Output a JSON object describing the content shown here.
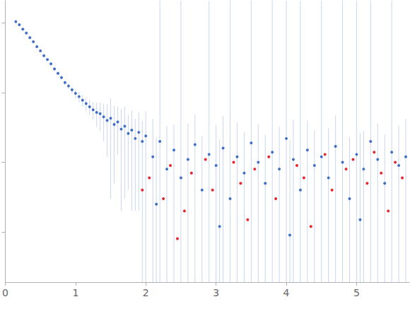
{
  "chart_data": {
    "type": "scatter",
    "log": "y",
    "grid": false,
    "tick_labels": "x",
    "xlim": [
      0,
      5.75
    ],
    "xticks": [
      0,
      1,
      2,
      3,
      4,
      5
    ],
    "ylim": [
      0.00019,
      2.1
    ],
    "yticks": [
      0.001,
      0.01,
      0.1,
      1
    ],
    "series": [
      {
        "color": "#3f6fc6",
        "marker": "circle",
        "x": [
          0.15,
          0.2,
          0.25,
          0.3,
          0.35,
          0.4,
          0.45,
          0.5,
          0.55,
          0.6,
          0.65,
          0.7,
          0.75,
          0.8,
          0.85,
          0.9,
          0.95,
          1.0,
          1.05,
          1.1,
          1.15,
          1.2,
          1.25,
          1.3,
          1.35,
          1.4,
          1.45,
          1.5,
          1.55,
          1.6,
          1.65,
          1.7,
          1.75,
          1.8,
          1.85,
          1.9,
          1.95,
          2.0,
          2.1,
          2.15,
          2.2,
          2.3,
          2.4,
          2.5,
          2.6,
          2.7,
          2.8,
          2.9,
          3.0,
          3.05,
          3.1,
          3.2,
          3.3,
          3.4,
          3.5,
          3.6,
          3.7,
          3.8,
          3.9,
          4.0,
          4.05,
          4.1,
          4.2,
          4.3,
          4.4,
          4.5,
          4.6,
          4.7,
          4.8,
          4.9,
          5.0,
          5.05,
          5.1,
          5.2,
          5.3,
          5.4,
          5.5,
          5.6,
          5.7
        ],
        "values": [
          1.05,
          0.95,
          0.82,
          0.72,
          0.62,
          0.54,
          0.46,
          0.4,
          0.34,
          0.3,
          0.26,
          0.22,
          0.19,
          0.165,
          0.14,
          0.125,
          0.11,
          0.098,
          0.088,
          0.078,
          0.07,
          0.063,
          0.057,
          0.052,
          0.05,
          0.045,
          0.04,
          0.043,
          0.035,
          0.038,
          0.03,
          0.033,
          0.026,
          0.029,
          0.022,
          0.027,
          0.02,
          0.024,
          0.012,
          0.0025,
          0.02,
          0.008,
          0.015,
          0.006,
          0.011,
          0.018,
          0.004,
          0.013,
          0.009,
          0.0012,
          0.016,
          0.003,
          0.012,
          0.007,
          0.019,
          0.01,
          0.005,
          0.014,
          0.008,
          0.022,
          0.0009,
          0.011,
          0.004,
          0.015,
          0.009,
          0.012,
          0.006,
          0.017,
          0.01,
          0.003,
          0.013,
          0.0015,
          0.008,
          0.02,
          0.011,
          0.005,
          0.014,
          0.009,
          0.012
        ],
        "errors": [
          0.01,
          0.01,
          0.01,
          0.01,
          0.01,
          0.01,
          0.01,
          0.01,
          0.01,
          0.01,
          0.01,
          0.01,
          0.01,
          0.01,
          0.01,
          0.012,
          0.012,
          0.015,
          0.015,
          0.015,
          0.015,
          0.015,
          0.016,
          0.02,
          0.022,
          0.025,
          0.028,
          0.04,
          0.03,
          0.025,
          0.028,
          0.03,
          0.022,
          0.027,
          0.02,
          0.025,
          0.02,
          0.03,
          0.03,
          0.02,
          2.5,
          0.025,
          0.02,
          2.5,
          0.025,
          0.03,
          0.02,
          2.5,
          0.025,
          0.02,
          0.03,
          2.5,
          0.025,
          0.02,
          2.5,
          0.025,
          0.02,
          2.5,
          0.025,
          2.5,
          0.02,
          0.03,
          2.5,
          0.025,
          0.02,
          2.5,
          0.025,
          0.03,
          2.5,
          0.02,
          2.5,
          0.025,
          0.02,
          2.5,
          0.025,
          0.02,
          2.5,
          0.025,
          0.03
        ]
      },
      {
        "color": "#e8262a",
        "marker": "circle",
        "x": [
          1.95,
          2.05,
          2.25,
          2.35,
          2.45,
          2.55,
          2.65,
          2.85,
          2.95,
          3.25,
          3.35,
          3.45,
          3.55,
          3.75,
          3.85,
          4.15,
          4.25,
          4.35,
          4.55,
          4.65,
          4.85,
          4.95,
          5.15,
          5.25,
          5.35,
          5.45,
          5.55,
          5.65
        ],
        "values": [
          0.004,
          0.006,
          0.003,
          0.009,
          0.0008,
          0.002,
          0.007,
          0.011,
          0.004,
          0.01,
          0.005,
          0.0015,
          0.008,
          0.012,
          0.003,
          0.009,
          0.006,
          0.0012,
          0.013,
          0.004,
          0.008,
          0.011,
          0.005,
          0.014,
          0.007,
          0.002,
          0.01,
          0.006
        ]
      }
    ]
  }
}
